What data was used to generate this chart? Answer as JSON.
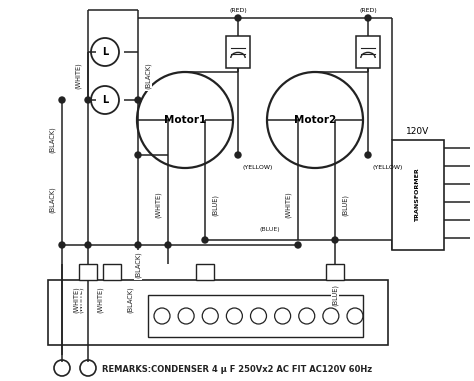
{
  "bg_color": "#ffffff",
  "lc": "#222222",
  "remarks": "REMARKS:CONDENSER 4 μ F 250Vx2 AC FIT AC120V 60Hz",
  "motor1_label": "Motor1",
  "motor2_label": "Motor2",
  "transformer_label": "TRANSFORMER",
  "voltage_label": "120V",
  "figw": 4.74,
  "figh": 3.81,
  "dpi": 100
}
